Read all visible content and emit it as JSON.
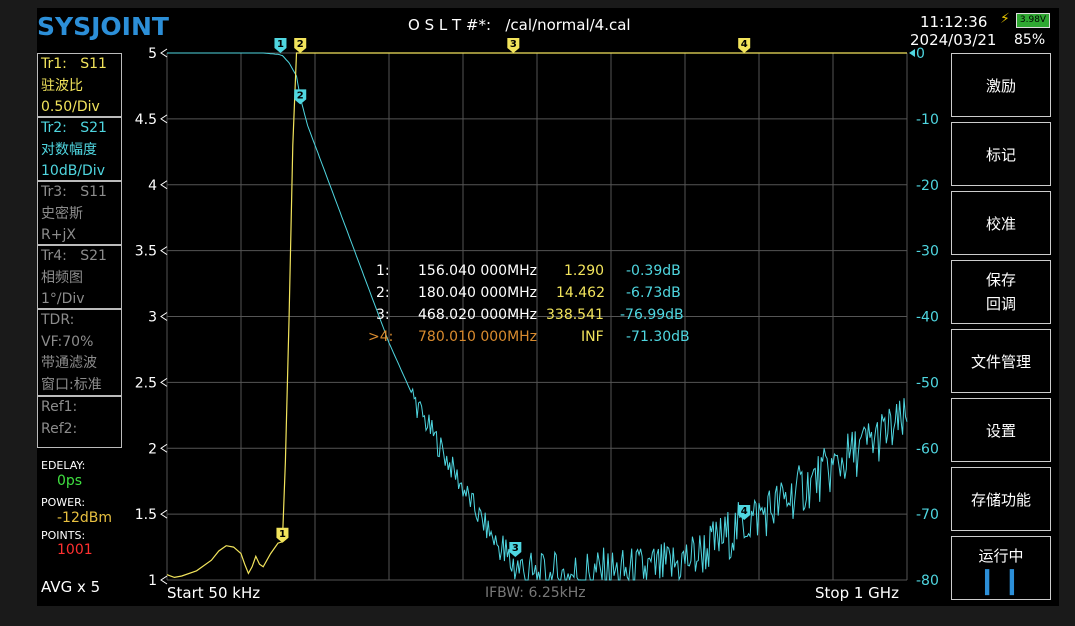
{
  "header": {
    "logo": "SYSJOINT",
    "cal_label": "O S L T #*:",
    "cal_file": "/cal/normal/4.cal",
    "time": "11:12:36",
    "date": "2024/03/21",
    "battery_voltage": "3.98V",
    "battery_pct": "85%",
    "battery_color": "#2fa832"
  },
  "traces": [
    {
      "name": "Tr1:",
      "param": "S11",
      "format": "驻波比",
      "scale": "0.50/Div",
      "color": "#f2e45c"
    },
    {
      "name": "Tr2:",
      "param": "S21",
      "format": "对数幅度",
      "scale": "10dB/Div",
      "color": "#4fd6e0"
    },
    {
      "name": "Tr3:",
      "param": "S11",
      "format": "史密斯",
      "scale": "R+jX",
      "color": "#8c8c8c"
    },
    {
      "name": "Tr4:",
      "param": "S21",
      "format": "相频图",
      "scale": "1°/Div",
      "color": "#8c8c8c"
    }
  ],
  "tdr": {
    "line1": "TDR:",
    "line2": "VF:70%",
    "line3": "带通滤波",
    "line4": "窗口:标准"
  },
  "refs": {
    "ref1": "Ref1:",
    "ref2": "Ref2:"
  },
  "settings": {
    "edelay_label": "EDELAY:",
    "edelay_value": "0ps",
    "power_label": "POWER:",
    "power_value": "-12dBm",
    "points_label": "POINTS:",
    "points_value": "1001",
    "avg": "AVG x 5"
  },
  "softkeys": {
    "stimulus": "激励",
    "marker": "标记",
    "calibrate": "校准",
    "save_recall_1": "保存",
    "save_recall_2": "回调",
    "file_manage": "文件管理",
    "settings": "设置",
    "storage": "存储功能",
    "running": "运行中",
    "pause_icon": "pause-icon"
  },
  "footer": {
    "start": "Start  50 kHz",
    "ifbw": "IFBW: 6.25kHz",
    "stop": "Stop  1 GHz"
  },
  "markers": [
    {
      "id": "1",
      "prefix": "1:",
      "freq": "156.040 000MHz",
      "swr": "1.290",
      "db": "-0.39dB"
    },
    {
      "id": "2",
      "prefix": "2:",
      "freq": "180.040 000MHz",
      "swr": "14.462",
      "db": "-6.73dB"
    },
    {
      "id": "3",
      "prefix": "3:",
      "freq": "468.020 000MHz",
      "swr": "338.541",
      "db": "-76.99dB"
    },
    {
      "id": "4",
      "prefix": ">4:",
      "freq": "780.010 000MHz",
      "swr": "INF",
      "db": "-71.30dB"
    }
  ],
  "chart_data": {
    "type": "line",
    "x_range_hz": [
      50000,
      1000000000
    ],
    "left_axis": {
      "ticks": [
        "5",
        "4.5",
        "4",
        "3.5",
        "3",
        "2.5",
        "2",
        "1.5",
        "1"
      ],
      "range": [
        1,
        5
      ]
    },
    "right_axis": {
      "ticks": [
        "0",
        "-10",
        "-20",
        "-30",
        "-40",
        "-50",
        "-60",
        "-70",
        "-80"
      ],
      "range": [
        -80,
        0
      ]
    },
    "grid": true,
    "series": [
      {
        "color": "#f2e45c",
        "x_mhz": [
          0,
          10,
          20,
          40,
          60,
          70,
          80,
          90,
          100,
          105,
          110,
          115,
          120,
          125,
          130,
          140,
          150,
          156,
          160,
          165,
          170,
          175,
          180,
          190,
          300,
          468,
          780,
          1000
        ],
        "y": [
          1.04,
          1.02,
          1.03,
          1.07,
          1.15,
          1.22,
          1.26,
          1.25,
          1.2,
          1.12,
          1.05,
          1.1,
          1.18,
          1.12,
          1.1,
          1.2,
          1.28,
          1.29,
          1.9,
          3.0,
          4.3,
          5,
          5,
          5,
          5,
          5,
          5,
          5
        ]
      },
      {
        "color": "#4fd6e0",
        "x_mhz": [
          0,
          50,
          100,
          130,
          150,
          156,
          165,
          175,
          180,
          190,
          220,
          260,
          300,
          340,
          380,
          420,
          460,
          500,
          560,
          620,
          680,
          720,
          760,
          780,
          820,
          860,
          900,
          950,
          1000
        ],
        "y": [
          0,
          0,
          0,
          0,
          -0.2,
          -0.39,
          -1.5,
          -3.5,
          -6.73,
          -11,
          -20,
          -32,
          -44,
          -54,
          -62,
          -70,
          -77,
          -80,
          -79,
          -79,
          -78,
          -76,
          -73,
          -71.3,
          -69,
          -66,
          -63,
          -59,
          -56
        ]
      }
    ]
  }
}
